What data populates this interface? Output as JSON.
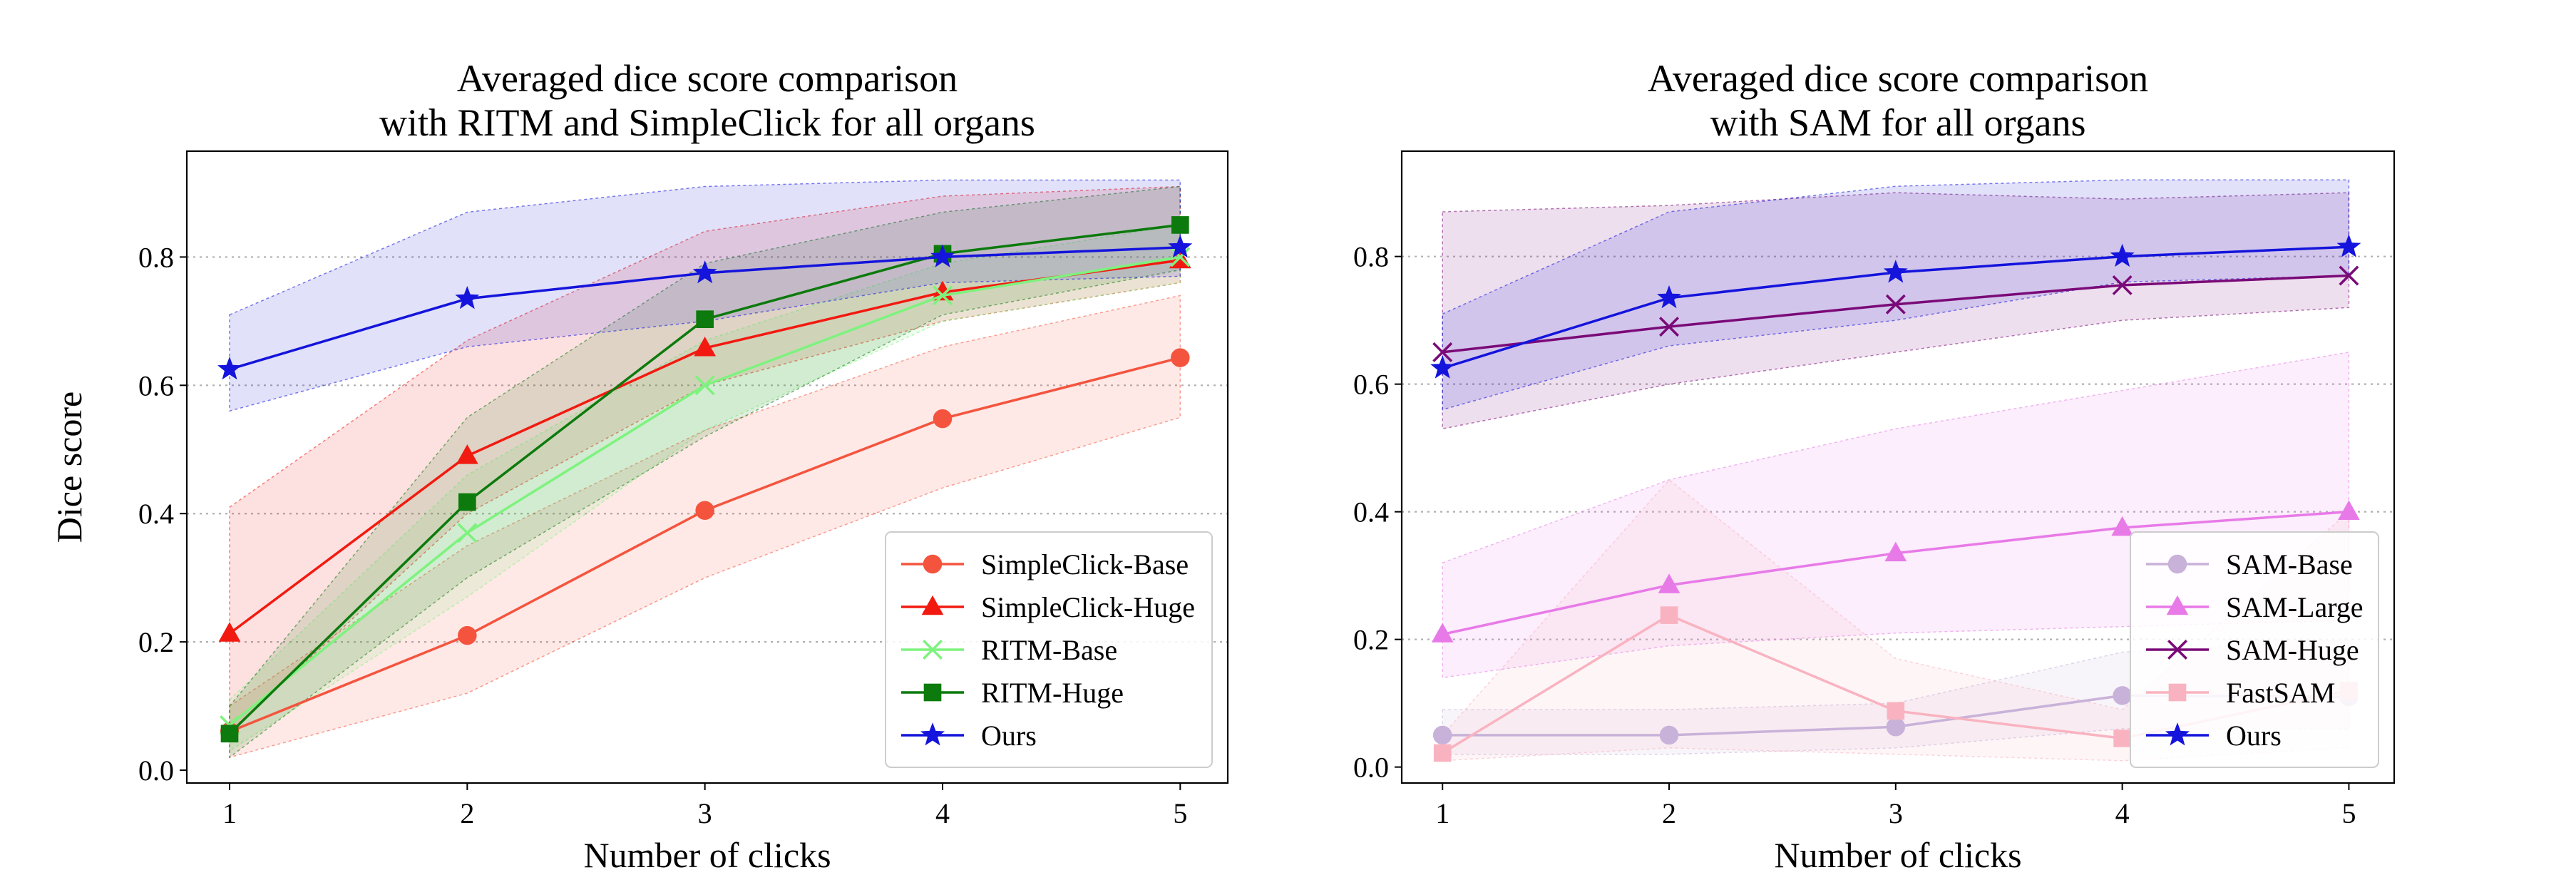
{
  "chart_data": [
    {
      "type": "line",
      "title_lines": [
        "Averaged dice score comparison",
        "with RITM and SimpleClick for all organs"
      ],
      "xlabel": "Number of clicks",
      "ylabel": "Dice score",
      "x": [
        1,
        2,
        3,
        4,
        5
      ],
      "xlim": [
        0.82,
        5.2
      ],
      "ylim": [
        -0.02,
        0.965
      ],
      "xticks": [
        "1",
        "2",
        "3",
        "4",
        "5"
      ],
      "yticks": [
        {
          "value": 0.0,
          "label": "0.0"
        },
        {
          "value": 0.2,
          "label": "0.2"
        },
        {
          "value": 0.4,
          "label": "0.4"
        },
        {
          "value": 0.6,
          "label": "0.6"
        },
        {
          "value": 0.8,
          "label": "0.8"
        }
      ],
      "grid": "horizontal-dotted",
      "legend_position": "lower-right",
      "series": [
        {
          "name": "SimpleClick-Base",
          "color": "#f4543e",
          "marker": "circle",
          "values": [
            0.06,
            0.21,
            0.405,
            0.548,
            0.643
          ],
          "band_low": [
            0.02,
            0.12,
            0.3,
            0.44,
            0.55
          ],
          "band_high": [
            0.1,
            0.35,
            0.53,
            0.66,
            0.74
          ]
        },
        {
          "name": "SimpleClick-Huge",
          "color": "#f21a10",
          "marker": "triangle",
          "values": [
            0.213,
            0.49,
            0.658,
            0.745,
            0.795
          ],
          "band_low": [
            0.06,
            0.4,
            0.6,
            0.7,
            0.76
          ],
          "band_high": [
            0.41,
            0.67,
            0.84,
            0.895,
            0.91
          ]
        },
        {
          "name": "RITM-Base",
          "color": "#7ef27e",
          "marker": "x",
          "values": [
            0.07,
            0.37,
            0.6,
            0.74,
            0.8
          ],
          "band_low": [
            0.03,
            0.27,
            0.53,
            0.7,
            0.76
          ],
          "band_high": [
            0.11,
            0.46,
            0.67,
            0.79,
            0.85
          ]
        },
        {
          "name": "RITM-Huge",
          "color": "#0c7a0c",
          "marker": "square",
          "values": [
            0.057,
            0.418,
            0.703,
            0.805,
            0.85
          ],
          "band_low": [
            0.02,
            0.3,
            0.52,
            0.71,
            0.78
          ],
          "band_high": [
            0.1,
            0.55,
            0.79,
            0.87,
            0.91
          ]
        },
        {
          "name": "Ours",
          "color": "#1414dc",
          "marker": "star",
          "values": [
            0.625,
            0.735,
            0.775,
            0.8,
            0.815
          ],
          "band_low": [
            0.56,
            0.66,
            0.7,
            0.76,
            0.77
          ],
          "band_high": [
            0.71,
            0.87,
            0.91,
            0.92,
            0.92
          ]
        }
      ]
    },
    {
      "type": "line",
      "title_lines": [
        "Averaged dice score comparison",
        "with SAM for all organs"
      ],
      "xlabel": "Number of clicks",
      "ylabel": "",
      "x": [
        1,
        2,
        3,
        4,
        5
      ],
      "xlim": [
        0.82,
        5.2
      ],
      "ylim": [
        -0.025,
        0.965
      ],
      "xticks": [
        "1",
        "2",
        "3",
        "4",
        "5"
      ],
      "yticks": [
        {
          "value": 0.0,
          "label": "0.0"
        },
        {
          "value": 0.2,
          "label": "0.2"
        },
        {
          "value": 0.4,
          "label": "0.4"
        },
        {
          "value": 0.6,
          "label": "0.6"
        },
        {
          "value": 0.8,
          "label": "0.8"
        }
      ],
      "grid": "horizontal-dotted",
      "legend_position": "lower-right",
      "series": [
        {
          "name": "SAM-Base",
          "color": "#c9b2d9",
          "marker": "circle",
          "values": [
            0.05,
            0.05,
            0.063,
            0.112,
            0.11
          ],
          "band_low": [
            0.02,
            0.02,
            0.03,
            0.06,
            0.06
          ],
          "band_high": [
            0.09,
            0.09,
            0.1,
            0.18,
            0.2
          ]
        },
        {
          "name": "SAM-Large",
          "color": "#e87ae8",
          "marker": "triangle",
          "values": [
            0.208,
            0.285,
            0.335,
            0.375,
            0.4
          ],
          "band_low": [
            0.14,
            0.19,
            0.21,
            0.22,
            0.23
          ],
          "band_high": [
            0.32,
            0.45,
            0.53,
            0.59,
            0.65
          ]
        },
        {
          "name": "SAM-Huge",
          "color": "#7a0a78",
          "marker": "x",
          "values": [
            0.65,
            0.69,
            0.725,
            0.755,
            0.77
          ],
          "band_low": [
            0.53,
            0.6,
            0.65,
            0.7,
            0.72
          ],
          "band_high": [
            0.87,
            0.88,
            0.9,
            0.89,
            0.9
          ]
        },
        {
          "name": "FastSAM",
          "color": "#f9b3c0",
          "marker": "square",
          "values": [
            0.022,
            0.238,
            0.088,
            0.045,
            0.12
          ],
          "band_low": [
            0.01,
            0.03,
            0.02,
            0.01,
            0.03
          ],
          "band_high": [
            0.05,
            0.45,
            0.17,
            0.09,
            0.4
          ]
        },
        {
          "name": "Ours",
          "color": "#1414dc",
          "marker": "star",
          "values": [
            0.625,
            0.735,
            0.775,
            0.8,
            0.815
          ],
          "band_low": [
            0.56,
            0.66,
            0.7,
            0.76,
            0.77
          ],
          "band_high": [
            0.71,
            0.87,
            0.91,
            0.92,
            0.92
          ]
        }
      ]
    }
  ]
}
